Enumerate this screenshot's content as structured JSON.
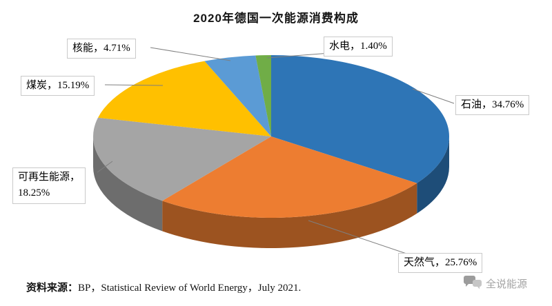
{
  "title": "2020年德国一次能源消费构成",
  "source_label": "资料来源：",
  "source_text": "BP，Statistical Review of World Energy，July 2021.",
  "watermark": "全说能源",
  "chart_data": {
    "type": "pie",
    "three_d": true,
    "title": "2020年德国一次能源消费构成",
    "start_angle_deg": 0,
    "direction": "clockwise",
    "legend_position": "none",
    "labels_style": "callout-boxes-with-leader-lines",
    "slices": [
      {
        "label": "石油",
        "value": 34.76,
        "display": "石油，34.76%",
        "color": "#2E75B6"
      },
      {
        "label": "天然气",
        "value": 25.76,
        "display": "天然气，25.76%",
        "color": "#ED7D31"
      },
      {
        "label": "可再生能源",
        "value": 18.25,
        "display": "可再生能源，\n18.25%",
        "color": "#A5A5A5"
      },
      {
        "label": "煤炭",
        "value": 15.19,
        "display": "煤炭，15.19%",
        "color": "#FFC000"
      },
      {
        "label": "核能",
        "value": 4.71,
        "display": "核能，4.71%",
        "color": "#5B9BD5"
      },
      {
        "label": "水电",
        "value": 1.4,
        "display": "水电，1.40%",
        "color": "#70AD47"
      }
    ]
  }
}
